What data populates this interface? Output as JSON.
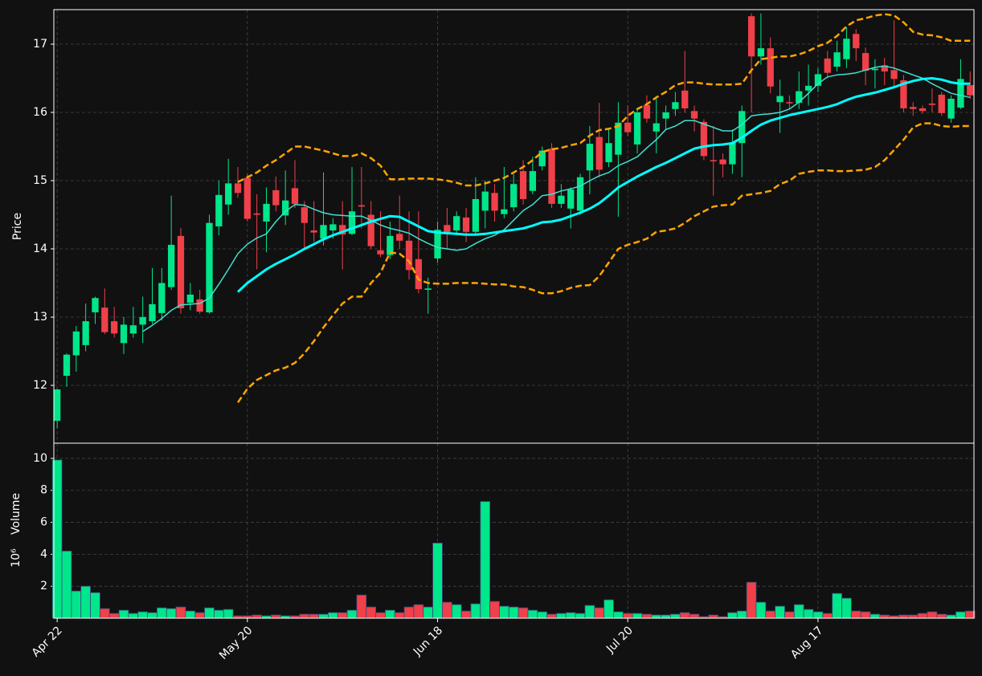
{
  "chart_data": [
    {
      "type": "candlestick",
      "ylabel": "Price",
      "up_color": "#00e68a",
      "down_color": "#f0404a",
      "xlim": [
        -0.35,
        96.4
      ],
      "ylim": [
        11.153,
        17.506
      ],
      "yticks": [
        12,
        13,
        14,
        15,
        16,
        17
      ],
      "grid": true,
      "open": [
        11.48,
        12.14,
        12.44,
        12.59,
        13.07,
        13.14,
        12.94,
        12.62,
        12.76,
        12.89,
        12.94,
        13.06,
        13.44,
        14.19,
        13.21,
        13.26,
        13.07,
        14.33,
        14.65,
        14.96,
        15.04,
        14.52,
        14.4,
        14.86,
        14.49,
        14.89,
        14.61,
        14.27,
        14.15,
        14.27,
        14.35,
        14.22,
        14.64,
        14.5,
        13.98,
        13.91,
        14.22,
        14.12,
        13.85,
        13.4,
        13.86,
        14.35,
        14.27,
        14.46,
        14.25,
        14.56,
        14.82,
        14.51,
        14.61,
        15.14,
        14.85,
        15.21,
        15.47,
        14.66,
        14.59,
        14.56,
        15.15,
        15.64,
        15.27,
        15.38,
        15.85,
        15.53,
        16.11,
        15.72,
        15.91,
        16.05,
        16.32,
        16.02,
        15.86,
        15.3,
        15.31,
        15.24,
        15.55,
        17.41,
        16.82,
        16.94,
        16.15,
        16.15,
        16.14,
        16.32,
        16.39,
        16.79,
        16.67,
        16.78,
        17.15,
        16.87,
        16.62,
        16.69,
        16.62,
        16.47,
        16.08,
        16.06,
        16.13,
        16.26,
        15.91,
        16.07,
        16.4
      ],
      "high": [
        11.95,
        12.47,
        12.87,
        13.2,
        13.3,
        13.42,
        13.15,
        13.0,
        13.15,
        13.3,
        13.72,
        13.72,
        14.78,
        14.31,
        13.5,
        13.4,
        14.5,
        15.0,
        15.32,
        15.2,
        15.1,
        14.8,
        14.9,
        15.06,
        15.15,
        15.3,
        14.7,
        14.7,
        15.12,
        14.45,
        14.7,
        15.2,
        15.2,
        14.7,
        14.55,
        14.4,
        14.78,
        14.55,
        14.55,
        13.58,
        14.4,
        14.6,
        14.55,
        14.6,
        15.05,
        15.0,
        14.95,
        15.2,
        15.1,
        15.3,
        15.35,
        15.5,
        15.55,
        14.95,
        14.9,
        15.1,
        15.8,
        16.14,
        15.75,
        16.15,
        16.1,
        16.05,
        16.25,
        16.2,
        16.1,
        16.3,
        16.9,
        16.1,
        15.9,
        15.8,
        15.4,
        15.75,
        16.1,
        17.45,
        17.45,
        17.1,
        16.48,
        16.25,
        16.6,
        16.7,
        16.65,
        16.9,
        17.05,
        17.25,
        17.22,
        16.95,
        16.78,
        16.8,
        17.35,
        16.55,
        16.15,
        16.1,
        16.35,
        16.3,
        16.25,
        16.78,
        16.6
      ],
      "low": [
        11.37,
        11.98,
        12.2,
        12.5,
        12.9,
        12.75,
        12.7,
        12.46,
        12.7,
        12.62,
        12.9,
        12.95,
        13.4,
        13.05,
        13.1,
        13.05,
        13.05,
        14.2,
        14.5,
        14.75,
        14.4,
        13.7,
        13.95,
        14.55,
        14.35,
        14.6,
        14.0,
        14.1,
        14.05,
        14.15,
        13.7,
        14.2,
        14.3,
        14.0,
        13.88,
        13.85,
        14.0,
        13.55,
        13.35,
        13.05,
        13.8,
        14.0,
        14.2,
        14.1,
        14.2,
        14.3,
        14.4,
        14.45,
        14.55,
        14.65,
        14.8,
        15.15,
        14.6,
        14.6,
        14.3,
        14.5,
        14.8,
        15.05,
        15.2,
        14.47,
        15.65,
        15.4,
        15.85,
        15.4,
        15.75,
        15.95,
        16.0,
        15.72,
        15.3,
        14.78,
        15.05,
        15.1,
        15.05,
        16.0,
        16.7,
        16.28,
        15.7,
        16.05,
        16.05,
        16.1,
        16.3,
        16.5,
        16.6,
        16.65,
        16.75,
        16.4,
        16.35,
        16.4,
        16.35,
        16.0,
        15.95,
        15.98,
        16.0,
        15.95,
        15.85,
        16.05,
        16.2
      ],
      "close": [
        11.94,
        12.45,
        12.79,
        12.94,
        13.28,
        12.78,
        12.76,
        12.89,
        12.88,
        13.0,
        13.19,
        13.5,
        14.06,
        13.13,
        13.33,
        13.08,
        14.38,
        14.79,
        14.96,
        14.82,
        14.44,
        14.5,
        14.66,
        14.64,
        14.71,
        14.66,
        14.38,
        14.24,
        14.35,
        14.36,
        14.21,
        14.55,
        14.62,
        14.04,
        13.92,
        14.19,
        14.12,
        13.69,
        13.41,
        13.42,
        14.28,
        14.24,
        14.48,
        14.25,
        14.73,
        14.84,
        14.56,
        14.58,
        14.95,
        14.73,
        15.14,
        15.44,
        14.66,
        14.78,
        14.87,
        15.05,
        15.54,
        15.16,
        15.55,
        15.85,
        15.71,
        16.0,
        15.91,
        15.84,
        16.0,
        16.15,
        16.06,
        15.91,
        15.36,
        15.29,
        15.24,
        15.56,
        16.02,
        16.82,
        16.94,
        16.38,
        16.24,
        16.14,
        16.31,
        16.39,
        16.56,
        16.58,
        16.88,
        17.08,
        16.94,
        16.61,
        16.64,
        16.6,
        16.49,
        16.06,
        16.05,
        16.02,
        16.11,
        15.99,
        16.2,
        16.49,
        16.25
      ],
      "series": [
        {
          "color": "#40e0d0",
          "width": 1.5,
          "dashed": false,
          "values": [
            null,
            null,
            null,
            null,
            null,
            null,
            null,
            null,
            null,
            12.79,
            12.88,
            12.98,
            13.1,
            13.18,
            13.19,
            13.2,
            13.28,
            13.48,
            13.7,
            13.93,
            14.07,
            14.16,
            14.22,
            14.4,
            14.55,
            14.65,
            14.64,
            14.58,
            14.53,
            14.5,
            14.49,
            14.48,
            14.48,
            14.42,
            14.35,
            14.3,
            14.27,
            14.23,
            14.15,
            14.08,
            14.02,
            14.0,
            13.98,
            14.0,
            14.08,
            14.15,
            14.2,
            14.28,
            14.42,
            14.56,
            14.65,
            14.78,
            14.8,
            14.85,
            14.88,
            14.92,
            15.0,
            15.07,
            15.12,
            15.22,
            15.28,
            15.35,
            15.48,
            15.6,
            15.75,
            15.8,
            15.88,
            15.88,
            15.83,
            15.78,
            15.73,
            15.73,
            15.82,
            15.95,
            15.97,
            15.98,
            16.0,
            16.05,
            16.15,
            16.28,
            16.42,
            16.52,
            16.55,
            16.56,
            16.58,
            16.62,
            16.66,
            16.68,
            16.65,
            16.6,
            16.55,
            16.5,
            16.42,
            16.35,
            16.28,
            16.25,
            16.22
          ]
        },
        {
          "color": "#00ffff",
          "width": 3,
          "dashed": false,
          "values": [
            null,
            null,
            null,
            null,
            null,
            null,
            null,
            null,
            null,
            null,
            null,
            null,
            null,
            null,
            null,
            null,
            null,
            null,
            null,
            13.37,
            13.5,
            13.6,
            13.7,
            13.78,
            13.85,
            13.92,
            14.0,
            14.07,
            14.14,
            14.2,
            14.25,
            14.3,
            14.35,
            14.4,
            14.44,
            14.48,
            14.47,
            14.4,
            14.33,
            14.26,
            14.24,
            14.23,
            14.22,
            14.21,
            14.21,
            14.22,
            14.24,
            14.26,
            14.28,
            14.3,
            14.34,
            14.39,
            14.4,
            14.43,
            14.48,
            14.53,
            14.59,
            14.67,
            14.78,
            14.9,
            14.98,
            15.06,
            15.13,
            15.2,
            15.26,
            15.33,
            15.4,
            15.47,
            15.5,
            15.52,
            15.53,
            15.55,
            15.63,
            15.73,
            15.82,
            15.88,
            15.92,
            15.96,
            15.99,
            16.02,
            16.05,
            16.08,
            16.12,
            16.18,
            16.23,
            16.26,
            16.29,
            16.33,
            16.37,
            16.42,
            16.46,
            16.49,
            16.5,
            16.48,
            16.44,
            16.42,
            16.42
          ]
        },
        {
          "color": "#ffa500",
          "width": 2.5,
          "dashed": true,
          "values": [
            null,
            null,
            null,
            null,
            null,
            null,
            null,
            null,
            null,
            null,
            null,
            null,
            null,
            null,
            null,
            null,
            null,
            null,
            null,
            14.98,
            15.05,
            15.12,
            15.22,
            15.3,
            15.4,
            15.5,
            15.5,
            15.47,
            15.44,
            15.4,
            15.36,
            15.36,
            15.4,
            15.33,
            15.22,
            15.02,
            15.02,
            15.03,
            15.03,
            15.03,
            15.02,
            15.0,
            14.97,
            14.93,
            14.93,
            14.96,
            15.0,
            15.04,
            15.12,
            15.2,
            15.3,
            15.42,
            15.46,
            15.48,
            15.52,
            15.55,
            15.66,
            15.74,
            15.76,
            15.8,
            15.95,
            16.05,
            16.12,
            16.22,
            16.3,
            16.4,
            16.44,
            16.44,
            16.42,
            16.41,
            16.41,
            16.41,
            16.42,
            16.62,
            16.78,
            16.8,
            16.82,
            16.82,
            16.85,
            16.9,
            16.97,
            17.02,
            17.12,
            17.26,
            17.35,
            17.38,
            17.42,
            17.44,
            17.42,
            17.32,
            17.18,
            17.14,
            17.13,
            17.1,
            17.05,
            17.05,
            17.05
          ]
        },
        {
          "color": "#ffa500",
          "width": 2.5,
          "dashed": true,
          "values": [
            null,
            null,
            null,
            null,
            null,
            null,
            null,
            null,
            null,
            null,
            null,
            null,
            null,
            null,
            null,
            null,
            null,
            null,
            null,
            11.75,
            11.95,
            12.08,
            12.15,
            12.22,
            12.26,
            12.33,
            12.47,
            12.65,
            12.85,
            13.03,
            13.2,
            13.3,
            13.3,
            13.5,
            13.65,
            13.95,
            13.93,
            13.82,
            13.55,
            13.5,
            13.49,
            13.49,
            13.5,
            13.5,
            13.5,
            13.49,
            13.48,
            13.48,
            13.45,
            13.44,
            13.4,
            13.35,
            13.35,
            13.38,
            13.43,
            13.46,
            13.47,
            13.6,
            13.8,
            14.0,
            14.06,
            14.1,
            14.15,
            14.25,
            14.27,
            14.3,
            14.38,
            14.48,
            14.55,
            14.62,
            14.64,
            14.65,
            14.78,
            14.8,
            14.82,
            14.85,
            14.95,
            15.0,
            15.1,
            15.13,
            15.15,
            15.15,
            15.14,
            15.14,
            15.15,
            15.16,
            15.2,
            15.3,
            15.45,
            15.6,
            15.78,
            15.84,
            15.84,
            15.8,
            15.79,
            15.8,
            15.8
          ]
        }
      ]
    },
    {
      "type": "volume",
      "ylabel": "Volume",
      "ylabel_unit": "10⁶",
      "up_color": "#00e68a",
      "down_color": "#f0404a",
      "xlim": [
        -0.35,
        96.4
      ],
      "ylim": [
        0,
        10.95
      ],
      "yticks": [
        2,
        4,
        6,
        8,
        10
      ],
      "grid": true,
      "xticks": [
        {
          "value": 0,
          "label": "Apr 22"
        },
        {
          "value": 20,
          "label": "May 20"
        },
        {
          "value": 40,
          "label": "Jun 18"
        },
        {
          "value": 60,
          "label": "Jul 20"
        },
        {
          "value": 80,
          "label": "Aug 17"
        }
      ],
      "values": [
        9.9,
        4.2,
        1.7,
        2.0,
        1.6,
        0.6,
        0.3,
        0.5,
        0.3,
        0.4,
        0.35,
        0.65,
        0.6,
        0.7,
        0.45,
        0.35,
        0.65,
        0.5,
        0.55,
        0.15,
        0.15,
        0.2,
        0.15,
        0.2,
        0.15,
        0.15,
        0.25,
        0.25,
        0.25,
        0.35,
        0.35,
        0.5,
        1.45,
        0.7,
        0.35,
        0.5,
        0.35,
        0.7,
        0.85,
        0.7,
        4.7,
        1.0,
        0.85,
        0.45,
        0.9,
        7.3,
        1.05,
        0.75,
        0.7,
        0.65,
        0.5,
        0.4,
        0.25,
        0.3,
        0.35,
        0.3,
        0.8,
        0.65,
        1.15,
        0.4,
        0.3,
        0.3,
        0.25,
        0.2,
        0.2,
        0.25,
        0.35,
        0.25,
        0.1,
        0.2,
        0.1,
        0.35,
        0.45,
        2.25,
        1.0,
        0.45,
        0.75,
        0.4,
        0.85,
        0.55,
        0.4,
        0.3,
        1.55,
        1.25,
        0.45,
        0.4,
        0.25,
        0.2,
        0.15,
        0.2,
        0.2,
        0.3,
        0.4,
        0.25,
        0.2,
        0.4,
        0.45
      ]
    }
  ]
}
